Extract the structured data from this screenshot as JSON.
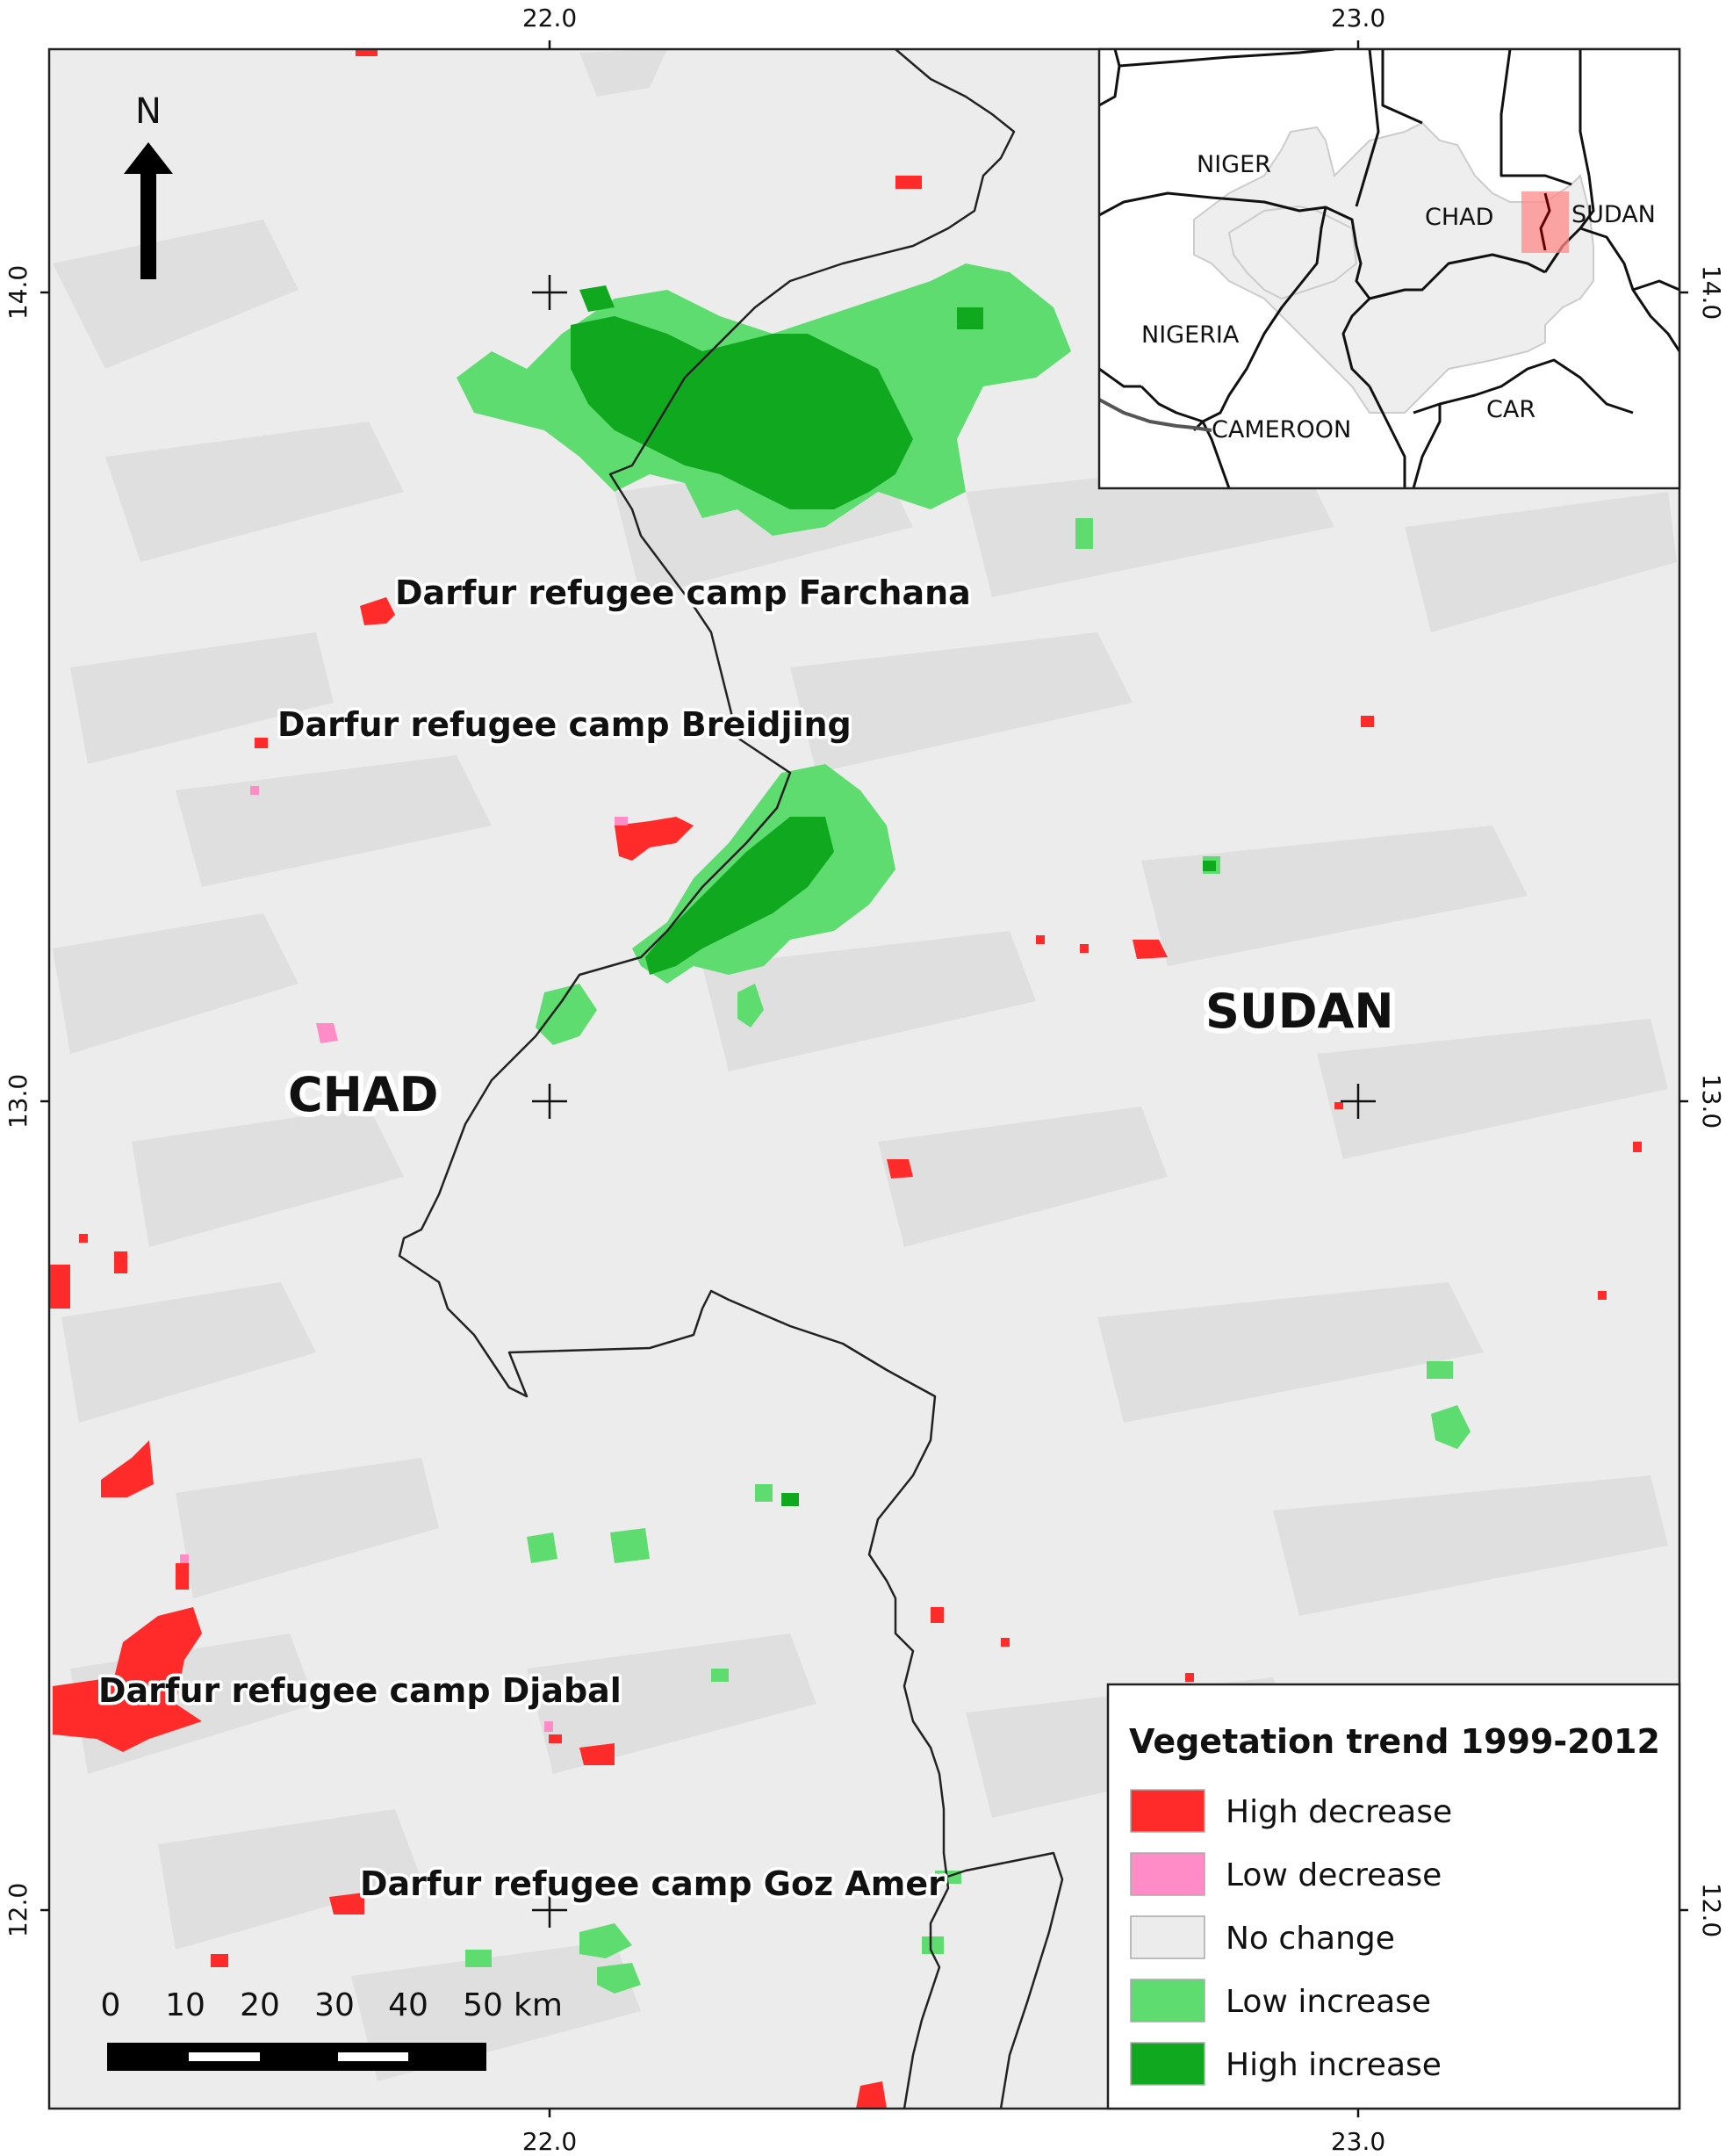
{
  "map": {
    "title": "",
    "x_ticks": [
      "22.0",
      "23.0"
    ],
    "y_ticks": [
      "14.0",
      "13.0",
      "12.0"
    ],
    "north_label": "N",
    "countries": [
      "CHAD",
      "SUDAN"
    ],
    "camps": [
      "Darfur refugee camp Farchana",
      "Darfur refugee camp Breidjing",
      "Darfur refugee camp Djabal",
      "Darfur refugee camp Goz Amer"
    ],
    "scale_bar": {
      "ticks": [
        "0",
        "10",
        "20",
        "30",
        "40",
        "50"
      ],
      "unit": "km"
    },
    "colors": {
      "background": "#ececec",
      "relief": "#dcdcdc",
      "high_decrease": "#ff2b2b",
      "low_decrease": "#ff8cc6",
      "no_change": "#ececec",
      "low_increase": "#5fdc6f",
      "high_increase": "#0fa81e",
      "border": "#222222"
    }
  },
  "inset": {
    "labels": [
      "NIGER",
      "CHAD",
      "SUDAN",
      "NIGERIA",
      "CAMEROON",
      "CAR"
    ]
  },
  "legend": {
    "title": "Vegetation trend 1999-2012",
    "items": [
      {
        "label": "High decrease",
        "color": "#ff2b2b"
      },
      {
        "label": "Low decrease",
        "color": "#ff8cc6"
      },
      {
        "label": "No change",
        "color": "#ececec"
      },
      {
        "label": "Low increase",
        "color": "#5fdc6f"
      },
      {
        "label": "High increase",
        "color": "#0fa81e"
      }
    ]
  }
}
